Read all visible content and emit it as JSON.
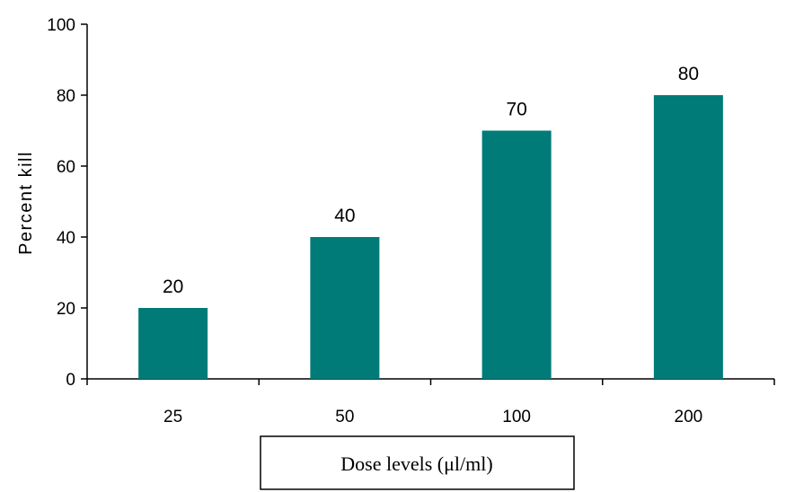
{
  "chart_data": {
    "type": "bar",
    "categories": [
      "25",
      "50",
      "100",
      "200"
    ],
    "values": [
      20,
      40,
      70,
      80
    ],
    "data_labels": [
      "20",
      "40",
      "70",
      "80"
    ],
    "title": "",
    "xlabel": "Dose levels (μl/ml)",
    "ylabel": "Percent kill",
    "ylim": [
      0,
      100
    ],
    "yticks": [
      "0",
      "20",
      "40",
      "60",
      "80",
      "100"
    ],
    "grid": false,
    "legend": "none",
    "bar_color": "#007B78"
  }
}
